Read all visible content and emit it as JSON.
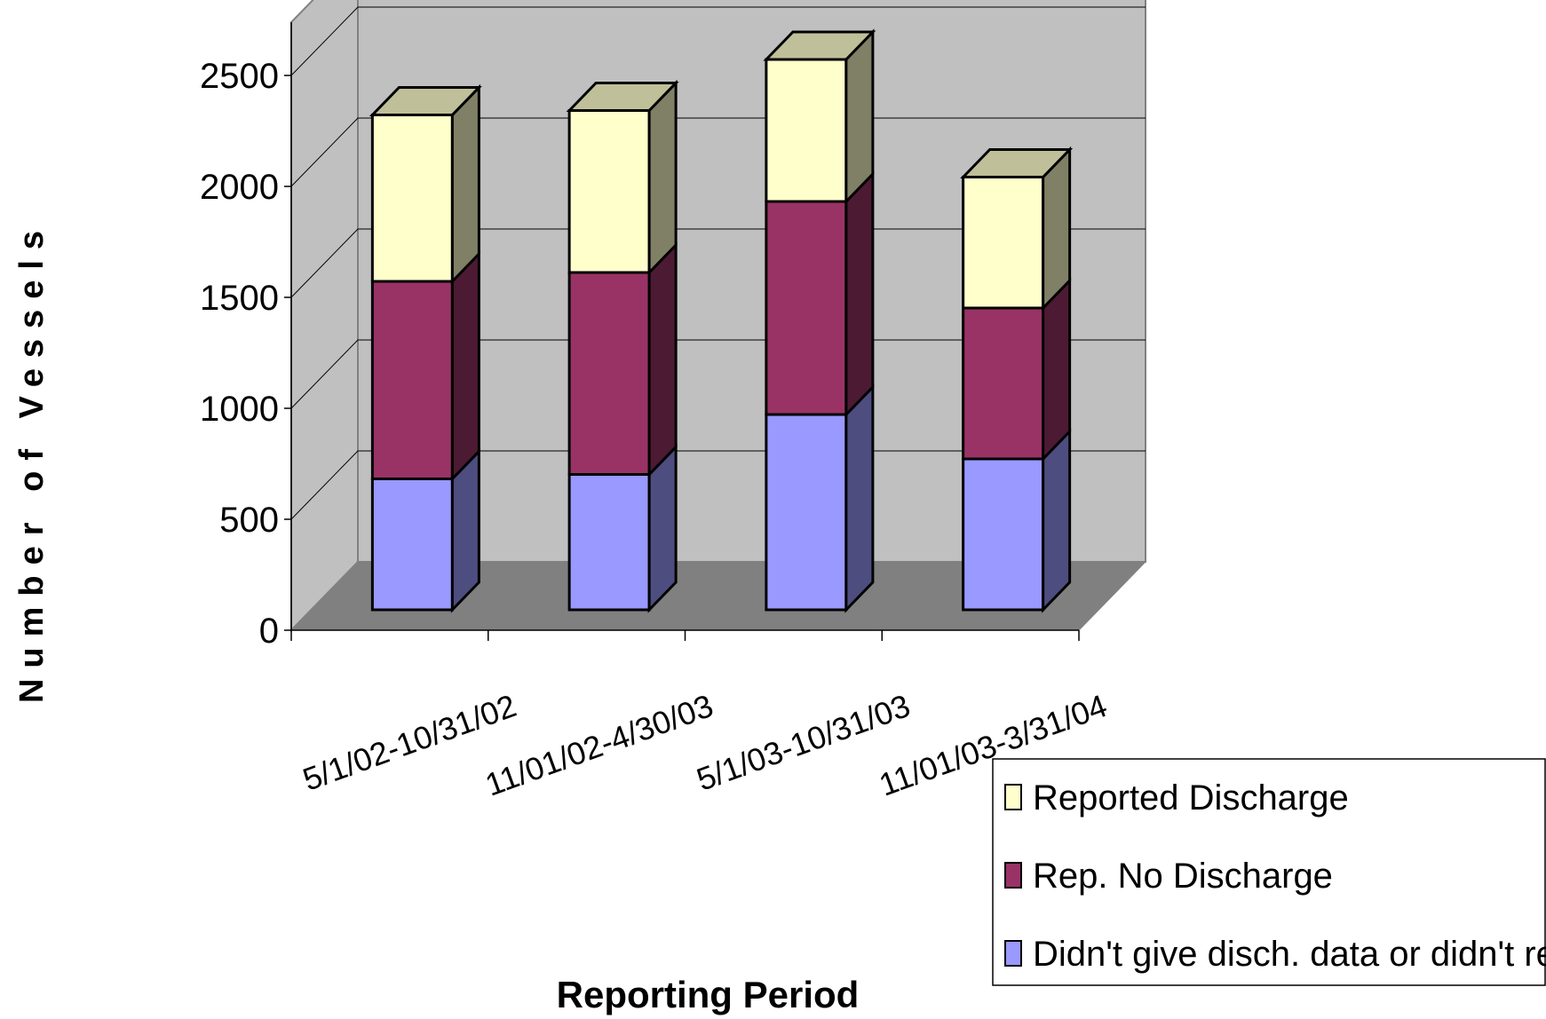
{
  "chart_data": {
    "type": "bar",
    "stacked": true,
    "three_d": true,
    "categories": [
      "5/1/02-10/31/02",
      "11/01/02-4/30/03",
      "5/1/03-10/31/03",
      "11/01/03-3/31/04"
    ],
    "series": [
      {
        "name": "Didn't give disch. data or didn't report",
        "values": [
          590,
          610,
          880,
          680
        ],
        "color": "#9999ff"
      },
      {
        "name": "Rep. No Discharge",
        "values": [
          890,
          910,
          960,
          680
        ],
        "color": "#993366"
      },
      {
        "name": "Reported Discharge",
        "values": [
          750,
          730,
          640,
          590
        ],
        "color": "#ffffcc"
      }
    ],
    "yticks": [
      0,
      500,
      1000,
      1500,
      2000,
      2500
    ],
    "ylim": [
      0,
      2500
    ],
    "xlabel": "Reporting Period",
    "ylabel": "Number of Vessels",
    "grid": true,
    "legend_position": "bottom-right",
    "colors": {
      "wall": "#c0c0c0",
      "floor": "#808080",
      "gridline": "#000000"
    }
  }
}
